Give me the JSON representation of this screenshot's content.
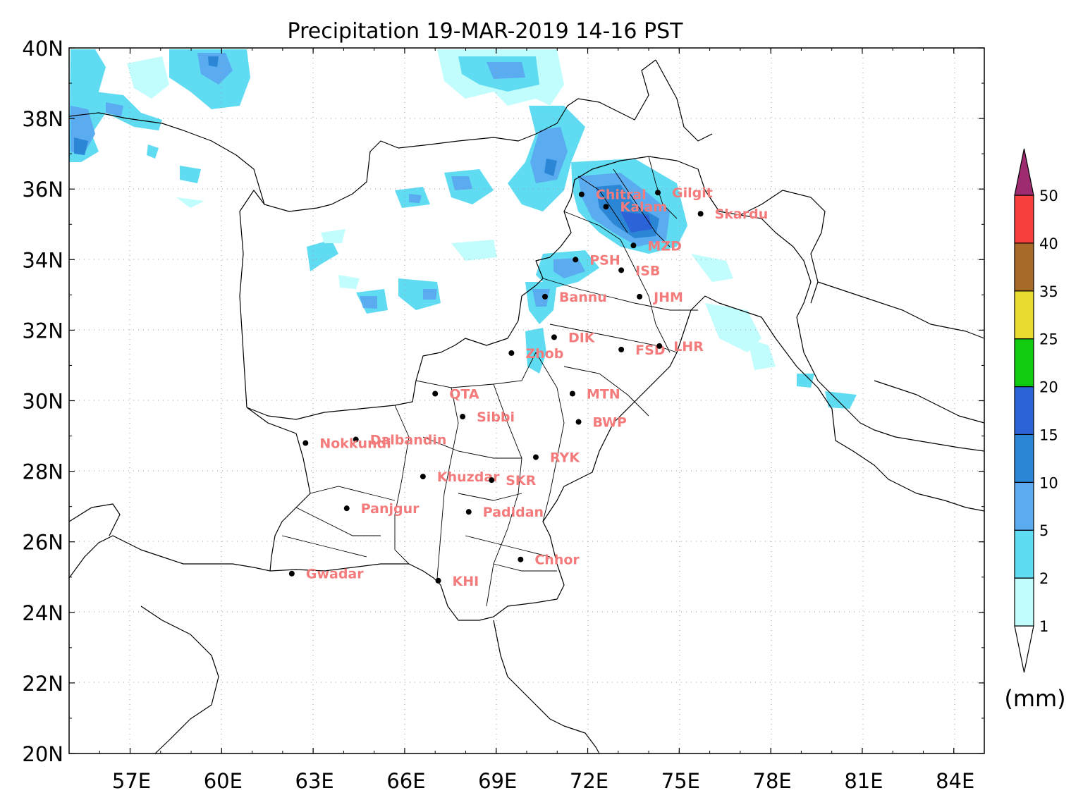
{
  "title": "Precipitation 19-MAR-2019 14-16 PST",
  "units": "(mm)",
  "lat_ticks": [
    "40N",
    "38N",
    "36N",
    "34N",
    "32N",
    "30N",
    "28N",
    "26N",
    "24N",
    "22N",
    "20N"
  ],
  "lon_ticks": [
    "57E",
    "60E",
    "63E",
    "66E",
    "69E",
    "72E",
    "75E",
    "78E",
    "81E",
    "84E"
  ],
  "extent": {
    "lon_min": 55,
    "lon_max": 85,
    "lat_min": 20,
    "lat_max": 40
  },
  "legend": {
    "levels": [
      "1",
      "2",
      "5",
      "10",
      "15",
      "20",
      "25",
      "35",
      "40",
      "50"
    ],
    "colors": [
      "#ffffff",
      "#c2fdfd",
      "#5fdcf2",
      "#5aabf0",
      "#2b87d6",
      "#2c63d8",
      "#10cc10",
      "#e8dc30",
      "#a86a28",
      "#f84040",
      "#9e2a70"
    ]
  },
  "cities": [
    {
      "name": "Chitral",
      "lon": 71.8,
      "lat": 35.85
    },
    {
      "name": "Gilgit",
      "lon": 74.3,
      "lat": 35.9
    },
    {
      "name": "Kalam",
      "lon": 72.6,
      "lat": 35.5
    },
    {
      "name": "Skardu",
      "lon": 75.7,
      "lat": 35.3
    },
    {
      "name": "MZD",
      "lon": 73.5,
      "lat": 34.4
    },
    {
      "name": "PSH",
      "lon": 71.6,
      "lat": 34.0
    },
    {
      "name": "ISB",
      "lon": 73.1,
      "lat": 33.7
    },
    {
      "name": "Bannu",
      "lon": 70.6,
      "lat": 32.95
    },
    {
      "name": "JHM",
      "lon": 73.7,
      "lat": 32.95
    },
    {
      "name": "DIK",
      "lon": 70.9,
      "lat": 31.8
    },
    {
      "name": "Zhob",
      "lon": 69.5,
      "lat": 31.35
    },
    {
      "name": "FSD",
      "lon": 73.1,
      "lat": 31.45
    },
    {
      "name": "LHR",
      "lon": 74.35,
      "lat": 31.55
    },
    {
      "name": "QTA",
      "lon": 67.0,
      "lat": 30.2
    },
    {
      "name": "MTN",
      "lon": 71.5,
      "lat": 30.2
    },
    {
      "name": "Sibbi",
      "lon": 67.9,
      "lat": 29.55
    },
    {
      "name": "BWP",
      "lon": 71.7,
      "lat": 29.4
    },
    {
      "name": "Dalbandin",
      "lon": 64.4,
      "lat": 28.9
    },
    {
      "name": "Nokkundi",
      "lon": 62.75,
      "lat": 28.8
    },
    {
      "name": "RYK",
      "lon": 70.3,
      "lat": 28.4
    },
    {
      "name": "Khuzdar",
      "lon": 66.6,
      "lat": 27.85
    },
    {
      "name": "SKR",
      "lon": 68.85,
      "lat": 27.75
    },
    {
      "name": "Panjgur",
      "lon": 64.1,
      "lat": 26.95
    },
    {
      "name": "Padidan",
      "lon": 68.1,
      "lat": 26.85
    },
    {
      "name": "Chhor",
      "lon": 69.8,
      "lat": 25.5
    },
    {
      "name": "Gwadar",
      "lon": 62.3,
      "lat": 25.1
    },
    {
      "name": "KHI",
      "lon": 67.1,
      "lat": 24.9
    }
  ]
}
